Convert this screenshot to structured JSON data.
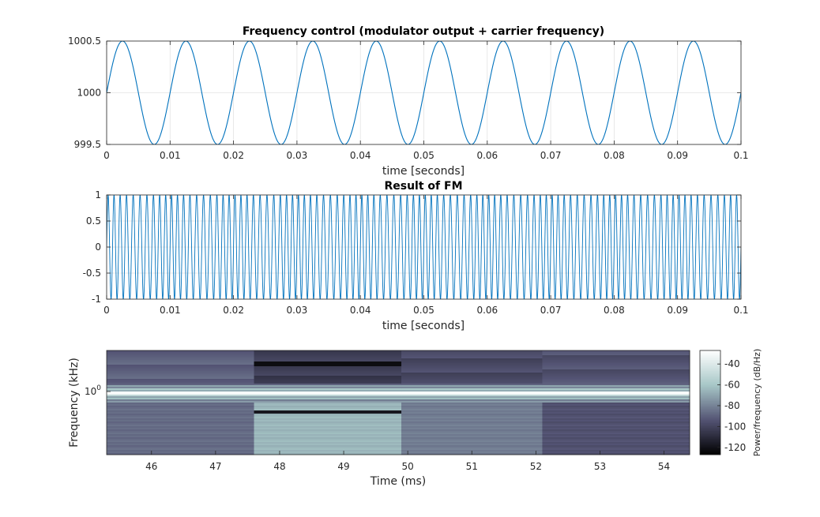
{
  "chart_data": [
    {
      "type": "line",
      "title": "Frequency control (modulator output + carrier frequency)",
      "xlabel": "time [seconds]",
      "ylabel": "",
      "xlim": [
        0,
        0.1
      ],
      "ylim": [
        999.5,
        1000.5
      ],
      "xticks": [
        "0",
        "0.01",
        "0.02",
        "0.03",
        "0.04",
        "0.05",
        "0.06",
        "0.07",
        "0.08",
        "0.09",
        "0.1"
      ],
      "yticks": [
        "999.5",
        "1000",
        "1000.5"
      ],
      "grid": true,
      "color": "#0072BD",
      "series": [
        {
          "function": "1000 + 0.5*sin(2*pi*100*t)",
          "carrier_hz": 1000,
          "modulator_hz": 100,
          "amplitude": 0.5
        }
      ]
    },
    {
      "type": "line",
      "title": "Result of FM",
      "xlabel": "time [seconds]",
      "ylabel": "",
      "xlim": [
        0,
        0.1
      ],
      "ylim": [
        -1,
        1
      ],
      "xticks": [
        "0",
        "0.01",
        "0.02",
        "0.03",
        "0.04",
        "0.05",
        "0.06",
        "0.07",
        "0.08",
        "0.09",
        "0.1"
      ],
      "yticks": [
        "-1",
        "-0.5",
        "0",
        "0.5",
        "1"
      ],
      "grid": true,
      "color": "#0072BD",
      "series": [
        {
          "function": "sin(2*pi*1000*t + phase(t))",
          "carrier_hz": 1000
        }
      ]
    },
    {
      "type": "heatmap",
      "title": "",
      "xlabel": "Time (ms)",
      "ylabel": "Frequency (kHz)",
      "xlim": [
        45.3,
        54.4
      ],
      "xticks": [
        "46",
        "47",
        "48",
        "49",
        "50",
        "51",
        "52",
        "53",
        "54"
      ],
      "yscale": "log",
      "yticks": [
        "10^0"
      ],
      "segments": [
        {
          "start_ms": 45.3,
          "end_ms": 47.6,
          "upper_db": -90,
          "lower_db": -87
        },
        {
          "start_ms": 47.6,
          "end_ms": 49.9,
          "upper_db": -103,
          "lower_db": -65
        },
        {
          "start_ms": 49.9,
          "end_ms": 52.1,
          "upper_db": -98,
          "lower_db": -82
        },
        {
          "start_ms": 52.1,
          "end_ms": 54.4,
          "upper_db": -95,
          "lower_db": -95
        }
      ],
      "colorbar": {
        "label": "Power/frequency (dB/Hz)",
        "ticks": [
          "-40",
          "-60",
          "-80",
          "-100",
          "-120"
        ],
        "tick_values": [
          -40,
          -60,
          -80,
          -100,
          -120
        ],
        "range": [
          -127,
          -27
        ],
        "colormap": "bone"
      }
    }
  ]
}
